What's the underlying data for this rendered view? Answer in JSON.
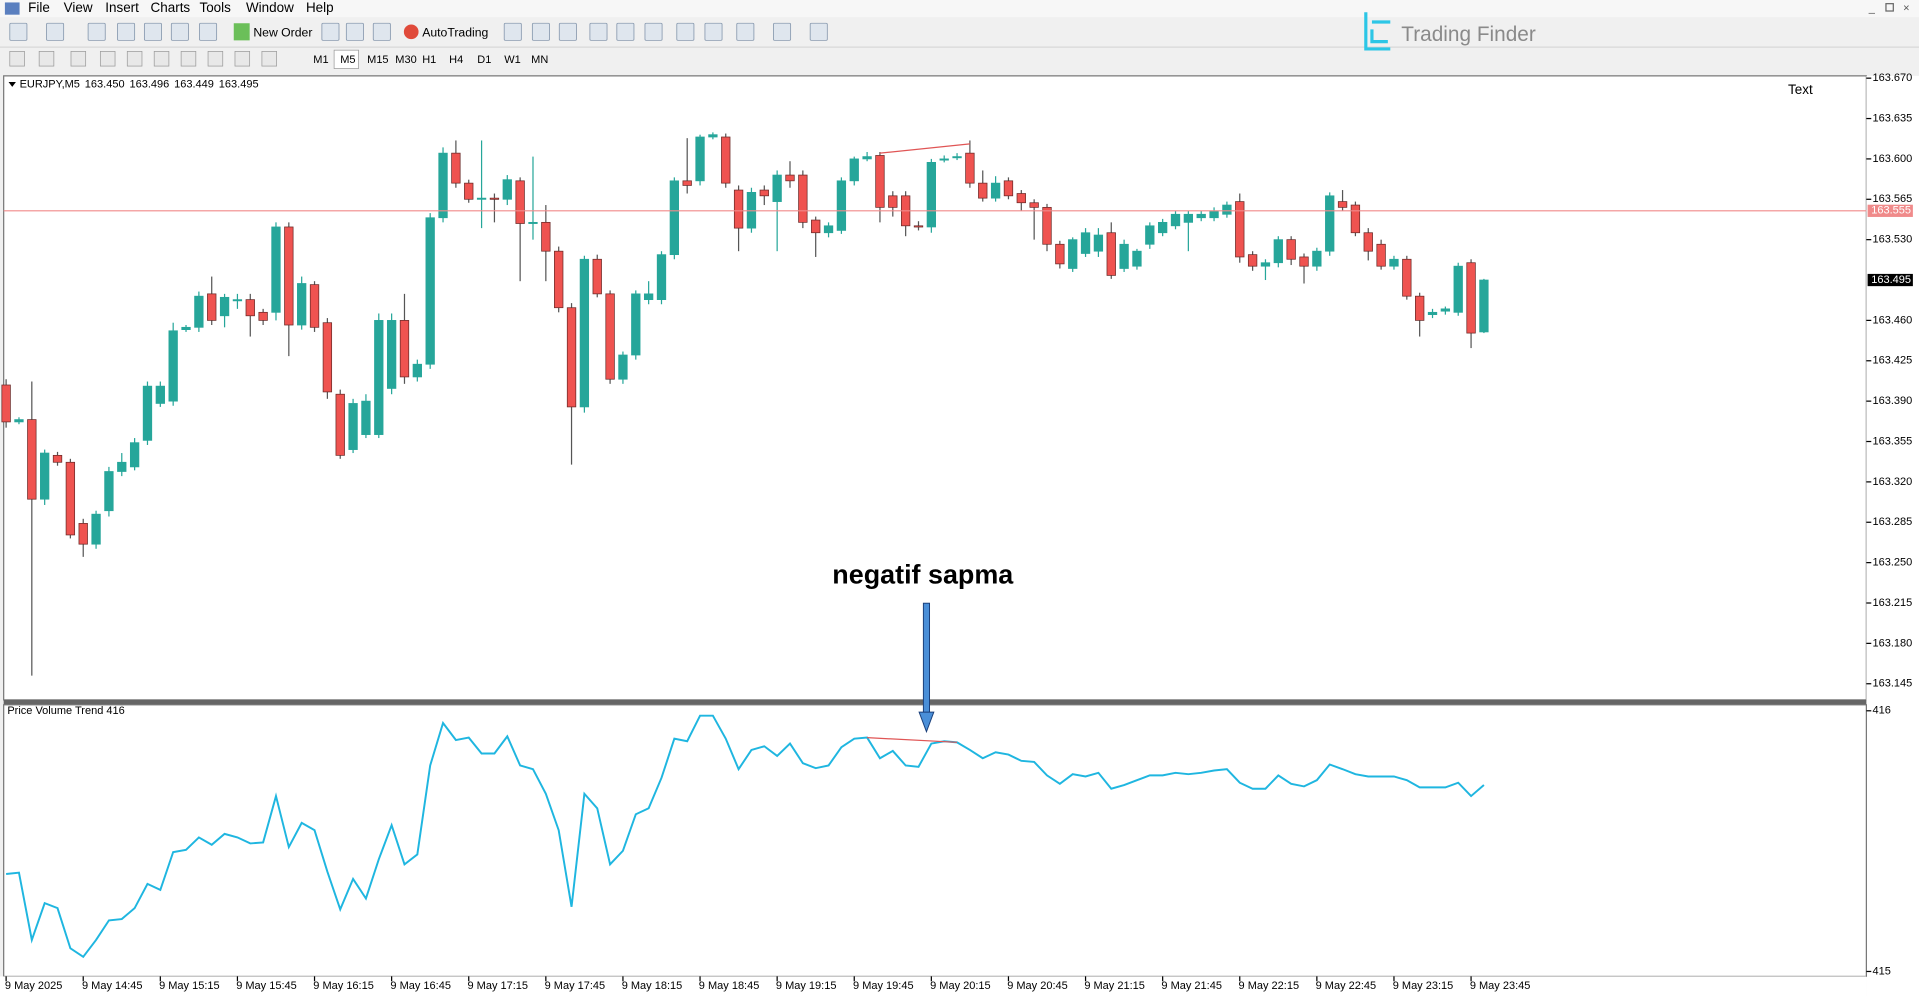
{
  "ui": {
    "menu": [
      "File",
      "View",
      "Insert",
      "Charts",
      "Tools",
      "Window",
      "Help"
    ],
    "toolbar_buttons": [
      "New Order",
      "AutoTrading"
    ],
    "timeframes": [
      "M1",
      "M5",
      "M15",
      "M30",
      "H1",
      "H4",
      "D1",
      "W1",
      "MN"
    ],
    "logo": "Trading Finder"
  },
  "chart_data": [
    {
      "type": "candlestick",
      "title": "EURJPY,M5",
      "header_values": [
        "163.450",
        "163.496",
        "163.449",
        "163.495"
      ],
      "text_label": "Text",
      "annotation": "negatif sapma",
      "categories": [
        "9 May 2025",
        null,
        null,
        null,
        null,
        null,
        "9 May 14:45",
        null,
        null,
        null,
        null,
        null,
        "9 May 15:15",
        null,
        null,
        null,
        null,
        null,
        "9 May 15:45",
        null,
        null,
        null,
        null,
        null,
        "9 May 16:15",
        null,
        null,
        null,
        null,
        null,
        "9 May 16:45",
        null,
        null,
        null,
        null,
        null,
        "9 May 17:15",
        null,
        null,
        null,
        null,
        null,
        "9 May 17:45",
        null,
        null,
        null,
        null,
        null,
        "9 May 18:15",
        null,
        null,
        null,
        null,
        null,
        "9 May 18:45",
        null,
        null,
        null,
        null,
        null,
        "9 May 19:15",
        null,
        null,
        null,
        null,
        null,
        "9 May 19:45",
        null,
        null,
        null,
        null,
        null,
        "9 May 20:15",
        null,
        null,
        null,
        null,
        null,
        "9 May 20:45",
        null,
        null,
        null,
        null,
        null,
        "9 May 21:15",
        null,
        null,
        null,
        null,
        null,
        "9 May 21:45",
        null,
        null,
        null,
        null,
        null,
        "9 May 22:15",
        null,
        null,
        null,
        null,
        null,
        "9 May 22:45",
        null,
        null,
        null,
        null,
        null,
        "9 May 23:15",
        null,
        null,
        null,
        null,
        null,
        "9 May 23:45",
        null
      ],
      "open": [
        163.404,
        163.372,
        163.374,
        163.305,
        163.343,
        163.337,
        163.284,
        163.266,
        163.295,
        163.329,
        163.333,
        163.356,
        163.388,
        163.39,
        163.452,
        163.454,
        163.483,
        163.464,
        163.477,
        163.478,
        163.467,
        163.467,
        163.541,
        163.456,
        163.491,
        163.458,
        163.396,
        163.348,
        163.361,
        163.361,
        163.401,
        163.46,
        163.411,
        163.422,
        163.549,
        163.605,
        163.579,
        163.565,
        163.566,
        163.565,
        163.581,
        163.544,
        163.545,
        163.52,
        163.471,
        163.385,
        163.513,
        163.483,
        163.409,
        163.43,
        163.478,
        163.478,
        163.517,
        163.581,
        163.581,
        163.619,
        163.619,
        163.573,
        163.54,
        163.573,
        163.563,
        163.586,
        163.586,
        163.547,
        163.536,
        163.538,
        163.581,
        163.6,
        163.603,
        163.568,
        163.568,
        163.542,
        163.541,
        163.599,
        163.601,
        163.605,
        163.579,
        163.566,
        163.581,
        163.57,
        163.562,
        163.558,
        163.526,
        163.505,
        163.518,
        163.52,
        163.536,
        163.505,
        163.507,
        163.526,
        163.536,
        163.542,
        163.545,
        163.549,
        163.549,
        163.552,
        163.563,
        163.517,
        163.507,
        163.51,
        163.53,
        163.515,
        163.507,
        163.52,
        163.563,
        163.56,
        163.536,
        163.526,
        163.507,
        163.513,
        163.481,
        163.465,
        163.468,
        163.467,
        163.51,
        163.45
      ],
      "high": [
        163.409,
        163.376,
        163.407,
        163.348,
        163.346,
        163.34,
        163.288,
        163.295,
        163.333,
        163.345,
        163.358,
        163.407,
        163.407,
        163.458,
        163.456,
        163.485,
        163.498,
        163.483,
        163.483,
        163.483,
        163.47,
        163.545,
        163.545,
        163.498,
        163.494,
        163.462,
        163.4,
        163.392,
        163.396,
        163.466,
        163.466,
        163.483,
        163.426,
        163.553,
        163.61,
        163.616,
        163.582,
        163.616,
        163.57,
        163.586,
        163.584,
        163.602,
        163.56,
        163.524,
        163.475,
        163.516,
        163.517,
        163.486,
        163.433,
        163.486,
        163.494,
        163.52,
        163.584,
        163.618,
        163.621,
        163.623,
        163.622,
        163.577,
        163.575,
        163.577,
        163.59,
        163.598,
        163.59,
        163.55,
        163.545,
        163.584,
        163.602,
        163.606,
        163.606,
        163.572,
        163.572,
        163.546,
        163.6,
        163.603,
        163.605,
        163.616,
        163.59,
        163.585,
        163.584,
        163.573,
        163.565,
        163.561,
        163.529,
        163.532,
        163.54,
        163.54,
        163.545,
        163.53,
        163.522,
        163.545,
        163.548,
        163.555,
        163.555,
        163.555,
        163.558,
        163.563,
        163.57,
        163.52,
        163.513,
        163.533,
        163.533,
        163.518,
        163.523,
        163.571,
        163.573,
        163.563,
        163.54,
        163.53,
        163.516,
        163.516,
        163.484,
        163.47,
        163.472,
        163.51,
        163.513,
        163.496
      ],
      "low": [
        163.367,
        163.37,
        163.152,
        163.3,
        163.334,
        163.271,
        163.255,
        163.262,
        163.29,
        163.325,
        163.33,
        163.352,
        163.385,
        163.386,
        163.45,
        163.45,
        163.456,
        163.454,
        163.47,
        163.446,
        163.456,
        163.46,
        163.429,
        163.452,
        163.45,
        163.392,
        163.34,
        163.345,
        163.358,
        163.358,
        163.396,
        163.405,
        163.407,
        163.418,
        163.545,
        163.575,
        163.562,
        163.54,
        163.545,
        163.56,
        163.494,
        163.53,
        163.494,
        163.467,
        163.335,
        163.38,
        163.48,
        163.405,
        163.405,
        163.426,
        163.474,
        163.474,
        163.513,
        163.57,
        163.577,
        163.617,
        163.575,
        163.52,
        163.536,
        163.56,
        163.52,
        163.575,
        163.54,
        163.515,
        163.532,
        163.535,
        163.577,
        163.598,
        163.545,
        163.55,
        163.533,
        163.538,
        163.536,
        163.597,
        163.599,
        163.575,
        163.563,
        163.563,
        163.565,
        163.555,
        163.53,
        163.52,
        163.505,
        163.502,
        163.515,
        163.515,
        163.496,
        163.502,
        163.504,
        163.522,
        163.533,
        163.539,
        163.52,
        163.546,
        163.546,
        163.549,
        163.51,
        163.503,
        163.495,
        163.506,
        163.508,
        163.492,
        163.503,
        163.516,
        163.555,
        163.533,
        163.512,
        163.504,
        163.504,
        163.478,
        163.446,
        163.462,
        163.465,
        163.464,
        163.436,
        163.449
      ],
      "close": [
        163.372,
        163.374,
        163.305,
        163.345,
        163.337,
        163.274,
        163.266,
        163.292,
        163.329,
        163.337,
        163.354,
        163.403,
        163.403,
        163.451,
        163.454,
        163.481,
        163.46,
        163.48,
        163.478,
        163.464,
        163.46,
        163.541,
        163.456,
        163.492,
        163.454,
        163.398,
        163.343,
        163.388,
        163.39,
        163.46,
        163.46,
        163.411,
        163.422,
        163.549,
        163.605,
        163.579,
        163.565,
        163.566,
        163.565,
        163.582,
        163.544,
        163.545,
        163.52,
        163.471,
        163.385,
        163.513,
        163.483,
        163.409,
        163.43,
        163.483,
        163.483,
        163.517,
        163.581,
        163.577,
        163.619,
        163.621,
        163.579,
        163.54,
        163.571,
        163.568,
        163.586,
        163.581,
        163.545,
        163.536,
        163.542,
        163.581,
        163.6,
        163.602,
        163.558,
        163.558,
        163.542,
        163.541,
        163.597,
        163.6,
        163.602,
        163.579,
        163.566,
        163.579,
        163.568,
        163.562,
        163.558,
        163.526,
        163.509,
        163.53,
        163.536,
        163.534,
        163.499,
        163.526,
        163.52,
        163.542,
        163.545,
        163.552,
        163.552,
        163.552,
        163.555,
        163.56,
        163.515,
        163.507,
        163.51,
        163.53,
        163.513,
        163.507,
        163.52,
        163.568,
        163.558,
        163.536,
        163.52,
        163.507,
        163.513,
        163.481,
        163.46,
        163.467,
        163.47,
        163.507,
        163.449,
        163.495
      ],
      "up_color": "#26a69a",
      "down_color": "#ef5350",
      "ylim": [
        163.131,
        163.672
      ],
      "yticks": [
        {
          "value": 163.67,
          "label": "163.670"
        },
        163.635,
        {
          "value": 163.6,
          "label": "163.600"
        },
        163.565,
        {
          "value": 163.53,
          "label": "163.530"
        },
        {
          "value": 163.46,
          "label": "163.460"
        },
        163.425,
        {
          "value": 163.39,
          "label": "163.390"
        },
        163.355,
        {
          "value": 163.32,
          "label": "163.320"
        },
        163.285,
        {
          "value": 163.25,
          "label": "163.250"
        },
        163.215,
        {
          "value": 163.18,
          "label": "163.180"
        },
        163.145
      ],
      "hline": {
        "value": 163.555,
        "color": "#f08a8a"
      },
      "divergence": {
        "x": [
          68,
          75
        ],
        "values": [
          163.605,
          163.613
        ],
        "color": "#e05555"
      }
    },
    {
      "type": "line",
      "title": "Price Volume Trend 416",
      "color": "#1fb6e0",
      "values": [
        415.374,
        415.379,
        415.121,
        415.262,
        415.243,
        415.089,
        415.056,
        415.121,
        415.196,
        415.201,
        415.243,
        415.336,
        415.313,
        415.458,
        415.467,
        415.514,
        415.486,
        415.528,
        415.514,
        415.491,
        415.495,
        415.673,
        415.477,
        415.57,
        415.542,
        415.383,
        415.238,
        415.355,
        415.28,
        415.43,
        415.561,
        415.411,
        415.449,
        415.79,
        415.953,
        415.888,
        415.897,
        415.836,
        415.836,
        415.902,
        415.79,
        415.776,
        415.682,
        415.542,
        415.248,
        415.682,
        415.626,
        415.411,
        415.463,
        415.603,
        415.626,
        415.743,
        415.893,
        415.883,
        415.981,
        415.981,
        415.893,
        415.776,
        415.85,
        415.864,
        415.827,
        415.874,
        415.799,
        415.78,
        415.79,
        415.86,
        415.893,
        415.897,
        415.818,
        415.846,
        415.79,
        415.785,
        415.874,
        415.883,
        415.879,
        415.85,
        415.818,
        415.841,
        415.832,
        415.808,
        415.804,
        415.752,
        415.72,
        415.757,
        415.748,
        415.762,
        415.701,
        415.715,
        415.734,
        415.752,
        415.752,
        415.762,
        415.757,
        415.762,
        415.771,
        415.776,
        415.724,
        415.701,
        415.701,
        415.752,
        415.72,
        415.71,
        415.734,
        415.794,
        415.776,
        415.757,
        415.748,
        415.748,
        415.748,
        415.734,
        415.706,
        415.706,
        415.706,
        415.724,
        415.673,
        415.715
      ],
      "ylim": [
        414.981,
        416.023
      ],
      "yticks": [
        416,
        415
      ],
      "divergence": {
        "x": [
          67,
          74
        ],
        "values": [
          415.897,
          415.879
        ],
        "color": "#e05555"
      }
    }
  ]
}
